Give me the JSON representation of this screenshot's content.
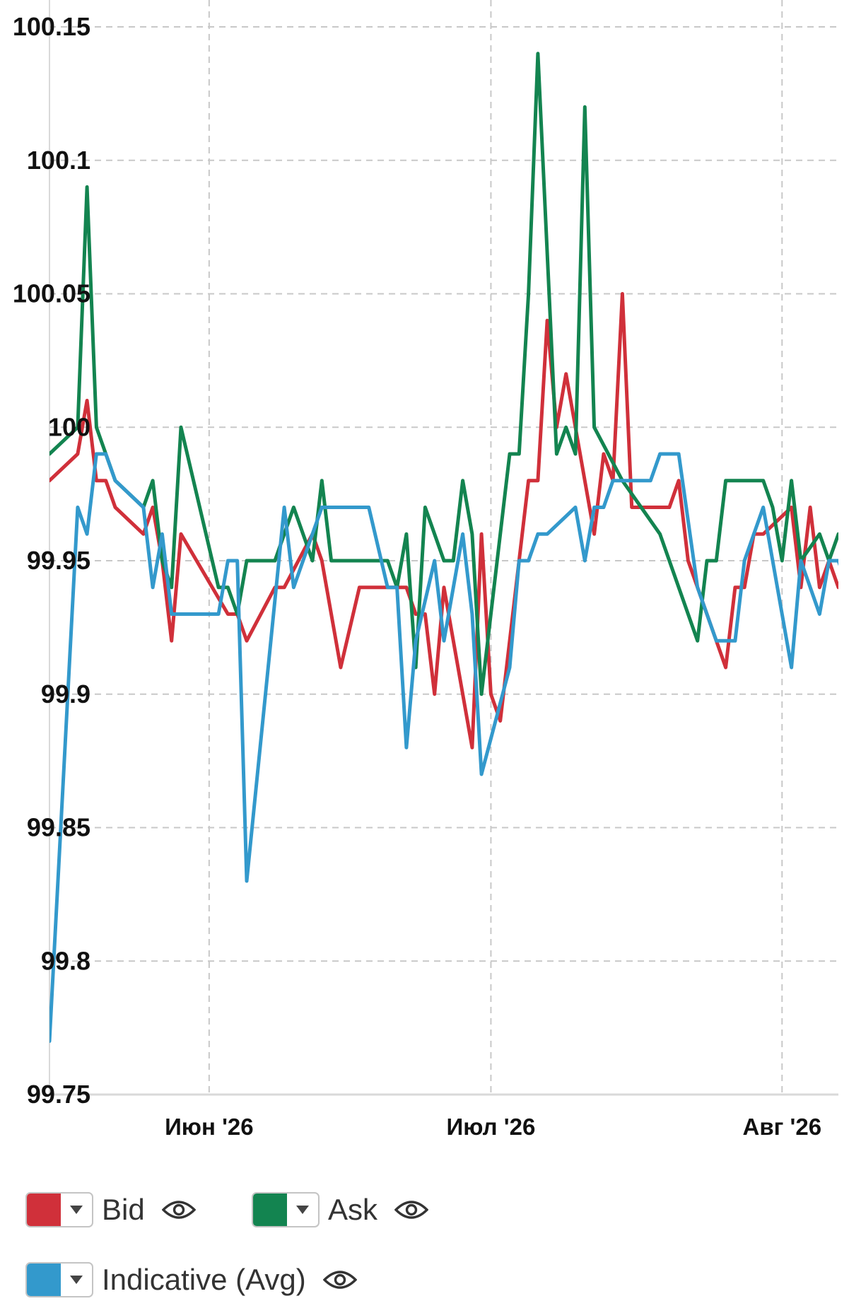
{
  "colors": {
    "bid": "#d0303a",
    "ask": "#138450",
    "indicative": "#3399cc",
    "grid": "#c8c8c8"
  },
  "chart_data": {
    "type": "line",
    "ylim": [
      99.75,
      100.15
    ],
    "yticks": [
      {
        "value": 100.15,
        "label": "100.15"
      },
      {
        "value": 100.1,
        "label": "100.1"
      },
      {
        "value": 100.05,
        "label": "100.05"
      },
      {
        "value": 100,
        "label": "100"
      },
      {
        "value": 99.95,
        "label": "99.95"
      },
      {
        "value": 99.9,
        "label": "99.9"
      },
      {
        "value": 99.85,
        "label": "99.85"
      },
      {
        "value": 99.8,
        "label": "99.8"
      },
      {
        "value": 99.75,
        "label": "99.75"
      }
    ],
    "xlim": [
      "2026-05-15",
      "2026-08-07"
    ],
    "xticks": [
      {
        "date": "2026-06-01",
        "label": "Июн '26"
      },
      {
        "date": "2026-07-01",
        "label": "Июл '26"
      },
      {
        "date": "2026-08-01",
        "label": "Авг '26"
      }
    ],
    "grid": true,
    "legend_position": "bottom",
    "series": [
      {
        "name": "Bid",
        "color": "#d0303a",
        "points": [
          [
            "2026-05-15",
            99.98
          ],
          [
            "2026-05-18",
            99.99
          ],
          [
            "2026-05-19",
            100.01
          ],
          [
            "2026-05-20",
            99.98
          ],
          [
            "2026-05-21",
            99.98
          ],
          [
            "2026-05-22",
            99.97
          ],
          [
            "2026-05-25",
            99.96
          ],
          [
            "2026-05-26",
            99.97
          ],
          [
            "2026-05-27",
            99.95
          ],
          [
            "2026-05-28",
            99.92
          ],
          [
            "2026-05-29",
            99.96
          ],
          [
            "2026-06-03",
            99.93
          ],
          [
            "2026-06-04",
            99.93
          ],
          [
            "2026-06-05",
            99.92
          ],
          [
            "2026-06-08",
            99.94
          ],
          [
            "2026-06-09",
            99.94
          ],
          [
            "2026-06-12",
            99.96
          ],
          [
            "2026-06-13",
            99.95
          ],
          [
            "2026-06-15",
            99.91
          ],
          [
            "2026-06-17",
            99.94
          ],
          [
            "2026-06-18",
            99.94
          ],
          [
            "2026-06-22",
            99.94
          ],
          [
            "2026-06-23",
            99.93
          ],
          [
            "2026-06-24",
            99.93
          ],
          [
            "2026-06-25",
            99.9
          ],
          [
            "2026-06-26",
            99.94
          ],
          [
            "2026-06-29",
            99.88
          ],
          [
            "2026-06-30",
            99.96
          ],
          [
            "2026-07-01",
            99.9
          ],
          [
            "2026-07-02",
            99.89
          ],
          [
            "2026-07-04",
            99.95
          ],
          [
            "2026-07-05",
            99.98
          ],
          [
            "2026-07-06",
            99.98
          ],
          [
            "2026-07-07",
            100.04
          ],
          [
            "2026-07-08",
            100
          ],
          [
            "2026-07-09",
            100.02
          ],
          [
            "2026-07-12",
            99.96
          ],
          [
            "2026-07-13",
            99.99
          ],
          [
            "2026-07-14",
            99.98
          ],
          [
            "2026-07-15",
            100.05
          ],
          [
            "2026-07-16",
            99.97
          ],
          [
            "2026-07-17",
            99.97
          ],
          [
            "2026-07-20",
            99.97
          ],
          [
            "2026-07-21",
            99.98
          ],
          [
            "2026-07-22",
            99.95
          ],
          [
            "2026-07-26",
            99.91
          ],
          [
            "2026-07-27",
            99.94
          ],
          [
            "2026-07-28",
            99.94
          ],
          [
            "2026-07-29",
            99.96
          ],
          [
            "2026-07-30",
            99.96
          ],
          [
            "2026-08-02",
            99.97
          ],
          [
            "2026-08-03",
            99.94
          ],
          [
            "2026-08-04",
            99.97
          ],
          [
            "2026-08-05",
            99.94
          ],
          [
            "2026-08-06",
            99.95
          ],
          [
            "2026-08-07",
            99.94
          ]
        ]
      },
      {
        "name": "Ask",
        "color": "#138450",
        "points": [
          [
            "2026-05-15",
            99.99
          ],
          [
            "2026-05-18",
            100
          ],
          [
            "2026-05-19",
            100.09
          ],
          [
            "2026-05-20",
            100
          ],
          [
            "2026-05-21",
            99.99
          ],
          [
            "2026-05-22",
            99.98
          ],
          [
            "2026-05-25",
            99.97
          ],
          [
            "2026-05-26",
            99.98
          ],
          [
            "2026-05-27",
            99.95
          ],
          [
            "2026-05-28",
            99.94
          ],
          [
            "2026-05-29",
            100
          ],
          [
            "2026-06-02",
            99.94
          ],
          [
            "2026-06-03",
            99.94
          ],
          [
            "2026-06-04",
            99.93
          ],
          [
            "2026-06-05",
            99.95
          ],
          [
            "2026-06-08",
            99.95
          ],
          [
            "2026-06-10",
            99.97
          ],
          [
            "2026-06-12",
            99.95
          ],
          [
            "2026-06-13",
            99.98
          ],
          [
            "2026-06-14",
            99.95
          ],
          [
            "2026-06-18",
            99.95
          ],
          [
            "2026-06-20",
            99.95
          ],
          [
            "2026-06-21",
            99.94
          ],
          [
            "2026-06-22",
            99.96
          ],
          [
            "2026-06-23",
            99.91
          ],
          [
            "2026-06-24",
            99.97
          ],
          [
            "2026-06-26",
            99.95
          ],
          [
            "2026-06-27",
            99.95
          ],
          [
            "2026-06-28",
            99.98
          ],
          [
            "2026-06-29",
            99.96
          ],
          [
            "2026-06-30",
            99.9
          ],
          [
            "2026-07-02",
            99.96
          ],
          [
            "2026-07-03",
            99.99
          ],
          [
            "2026-07-04",
            99.99
          ],
          [
            "2026-07-05",
            100.05
          ],
          [
            "2026-07-06",
            100.14
          ],
          [
            "2026-07-08",
            99.99
          ],
          [
            "2026-07-09",
            100
          ],
          [
            "2026-07-10",
            99.99
          ],
          [
            "2026-07-11",
            100.12
          ],
          [
            "2026-07-12",
            100
          ],
          [
            "2026-07-15",
            99.98
          ],
          [
            "2026-07-17",
            99.97
          ],
          [
            "2026-07-19",
            99.96
          ],
          [
            "2026-07-23",
            99.92
          ],
          [
            "2026-07-24",
            99.95
          ],
          [
            "2026-07-25",
            99.95
          ],
          [
            "2026-07-26",
            99.98
          ],
          [
            "2026-07-30",
            99.98
          ],
          [
            "2026-07-31",
            99.97
          ],
          [
            "2026-08-01",
            99.95
          ],
          [
            "2026-08-02",
            99.98
          ],
          [
            "2026-08-03",
            99.95
          ],
          [
            "2026-08-05",
            99.96
          ],
          [
            "2026-08-06",
            99.95
          ],
          [
            "2026-08-07",
            99.96
          ],
          [
            "2026-08-08",
            99.95
          ]
        ]
      },
      {
        "name": "Indicative (Avg)",
        "color": "#3399cc",
        "points": [
          [
            "2026-05-15",
            99.77
          ],
          [
            "2026-05-18",
            99.97
          ],
          [
            "2026-05-19",
            99.96
          ],
          [
            "2026-05-20",
            99.99
          ],
          [
            "2026-05-21",
            99.99
          ],
          [
            "2026-05-22",
            99.98
          ],
          [
            "2026-05-25",
            99.97
          ],
          [
            "2026-05-26",
            99.94
          ],
          [
            "2026-05-27",
            99.96
          ],
          [
            "2026-05-28",
            99.93
          ],
          [
            "2026-06-01",
            99.93
          ],
          [
            "2026-06-02",
            99.93
          ],
          [
            "2026-06-03",
            99.95
          ],
          [
            "2026-06-04",
            99.95
          ],
          [
            "2026-06-05",
            99.83
          ],
          [
            "2026-06-09",
            99.97
          ],
          [
            "2026-06-10",
            99.94
          ],
          [
            "2026-06-13",
            99.97
          ],
          [
            "2026-06-18",
            99.97
          ],
          [
            "2026-06-20",
            99.94
          ],
          [
            "2026-06-21",
            99.94
          ],
          [
            "2026-06-22",
            99.88
          ],
          [
            "2026-06-23",
            99.92
          ],
          [
            "2026-06-25",
            99.95
          ],
          [
            "2026-06-26",
            99.92
          ],
          [
            "2026-06-28",
            99.96
          ],
          [
            "2026-06-29",
            99.93
          ],
          [
            "2026-06-30",
            99.87
          ],
          [
            "2026-07-03",
            99.91
          ],
          [
            "2026-07-04",
            99.95
          ],
          [
            "2026-07-05",
            99.95
          ],
          [
            "2026-07-06",
            99.96
          ],
          [
            "2026-07-07",
            99.96
          ],
          [
            "2026-07-10",
            99.97
          ],
          [
            "2026-07-11",
            99.95
          ],
          [
            "2026-07-12",
            99.97
          ],
          [
            "2026-07-13",
            99.97
          ],
          [
            "2026-07-14",
            99.98
          ],
          [
            "2026-07-18",
            99.98
          ],
          [
            "2026-07-19",
            99.99
          ],
          [
            "2026-07-21",
            99.99
          ],
          [
            "2026-07-23",
            99.94
          ],
          [
            "2026-07-25",
            99.92
          ],
          [
            "2026-07-27",
            99.92
          ],
          [
            "2026-07-28",
            99.95
          ],
          [
            "2026-07-30",
            99.97
          ],
          [
            "2026-08-01",
            99.93
          ],
          [
            "2026-08-02",
            99.91
          ],
          [
            "2026-08-03",
            99.95
          ],
          [
            "2026-08-05",
            99.93
          ],
          [
            "2026-08-06",
            99.95
          ],
          [
            "2026-08-07",
            99.95
          ],
          [
            "2026-08-08",
            99.94
          ]
        ]
      }
    ]
  },
  "legend": {
    "items": [
      {
        "label": "Bid",
        "color_key": "bid",
        "icon": "eye-icon"
      },
      {
        "label": "Ask",
        "color_key": "ask",
        "icon": "eye-icon"
      },
      {
        "label": "Indicative (Avg)",
        "color_key": "indicative",
        "icon": "eye-icon"
      }
    ]
  }
}
